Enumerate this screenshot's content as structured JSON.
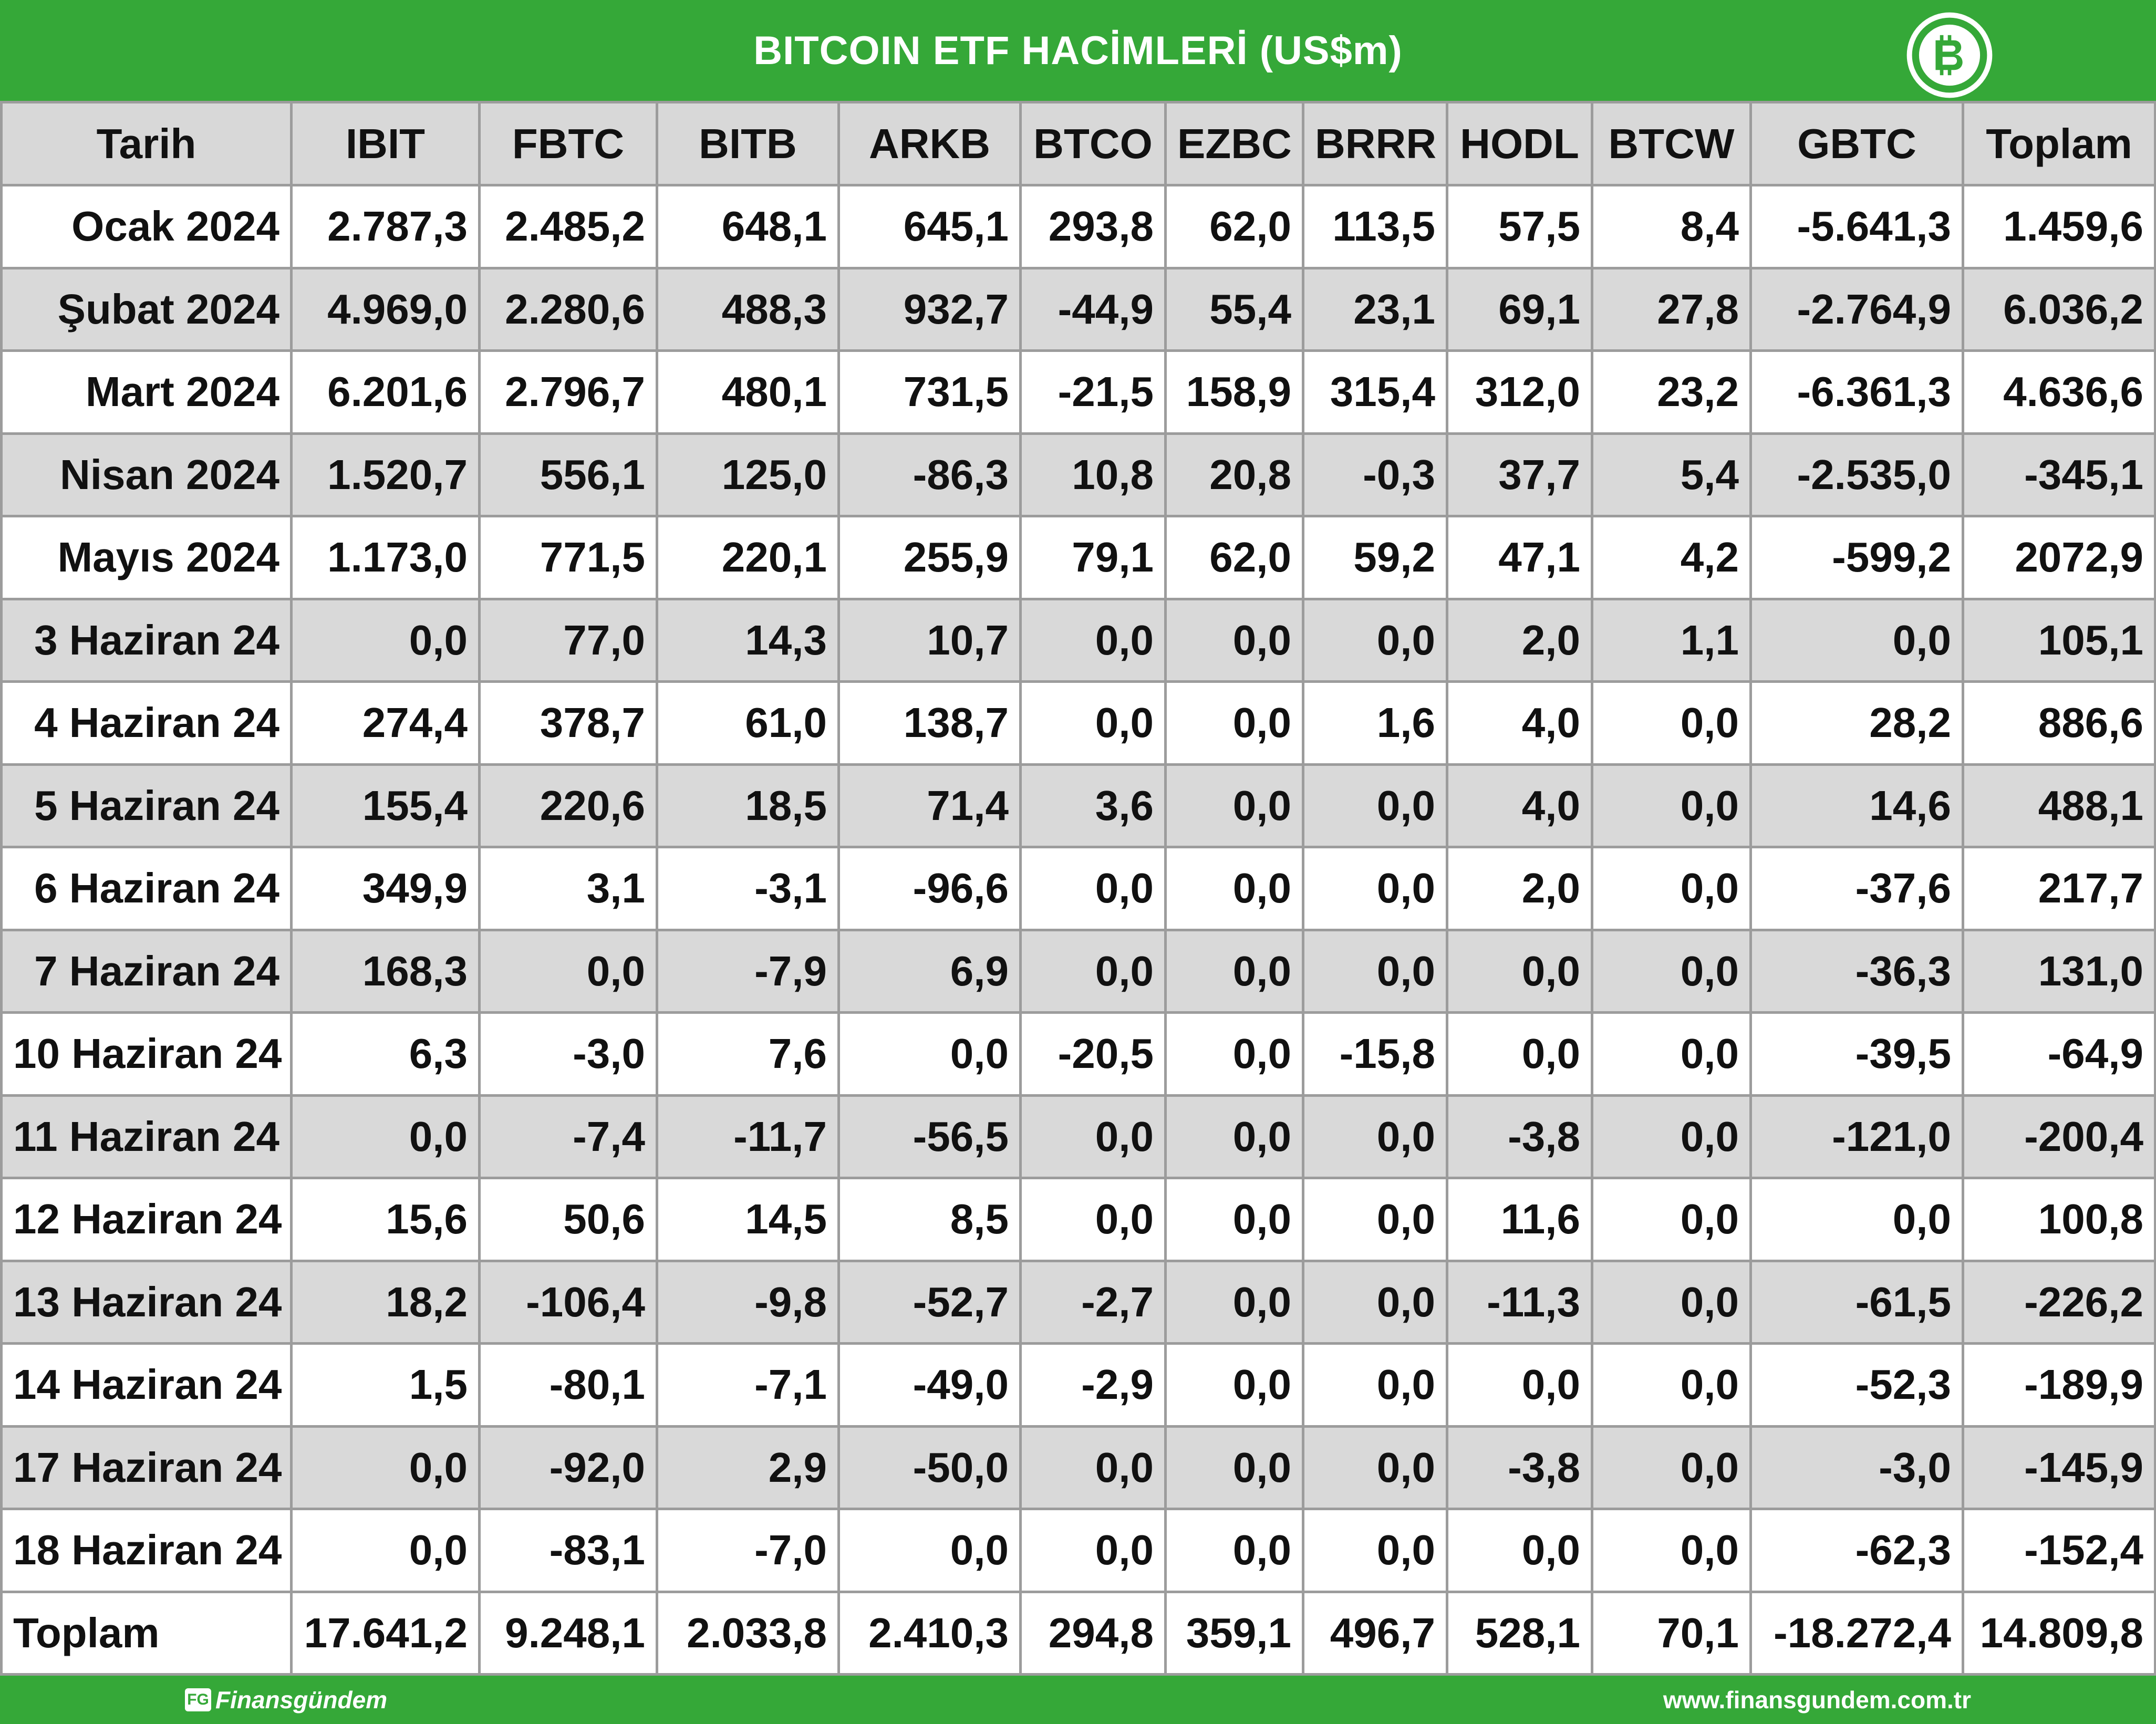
{
  "header": {
    "title": "BITCOIN ETF HACİMLERİ (US$m)",
    "logo_icon": "bitcoin-icon",
    "accent_color": "#35a838"
  },
  "table": {
    "columns": [
      "Tarih",
      "IBIT",
      "FBTC",
      "BITB",
      "ARKB",
      "BTCO",
      "EZBC",
      "BRRR",
      "HODL",
      "BTCW",
      "GBTC",
      "Toplam"
    ],
    "rows": [
      [
        "Ocak 2024",
        "2.787,3",
        "2.485,2",
        "648,1",
        "645,1",
        "293,8",
        "62,0",
        "113,5",
        "57,5",
        "8,4",
        "-5.641,3",
        "1.459,6"
      ],
      [
        "Şubat 2024",
        "4.969,0",
        "2.280,6",
        "488,3",
        "932,7",
        "-44,9",
        "55,4",
        "23,1",
        "69,1",
        "27,8",
        "-2.764,9",
        "6.036,2"
      ],
      [
        "Mart 2024",
        "6.201,6",
        "2.796,7",
        "480,1",
        "731,5",
        "-21,5",
        "158,9",
        "315,4",
        "312,0",
        "23,2",
        "-6.361,3",
        "4.636,6"
      ],
      [
        "Nisan 2024",
        "1.520,7",
        "556,1",
        "125,0",
        "-86,3",
        "10,8",
        "20,8",
        "-0,3",
        "37,7",
        "5,4",
        "-2.535,0",
        "-345,1"
      ],
      [
        "Mayıs 2024",
        "1.173,0",
        "771,5",
        "220,1",
        "255,9",
        "79,1",
        "62,0",
        "59,2",
        "47,1",
        "4,2",
        "-599,2",
        "2072,9"
      ],
      [
        "3 Haziran 24",
        "0,0",
        "77,0",
        "14,3",
        "10,7",
        "0,0",
        "0,0",
        "0,0",
        "2,0",
        "1,1",
        "0,0",
        "105,1"
      ],
      [
        "4 Haziran 24",
        "274,4",
        "378,7",
        "61,0",
        "138,7",
        "0,0",
        "0,0",
        "1,6",
        "4,0",
        "0,0",
        "28,2",
        "886,6"
      ],
      [
        "5 Haziran 24",
        "155,4",
        "220,6",
        "18,5",
        "71,4",
        "3,6",
        "0,0",
        "0,0",
        "4,0",
        "0,0",
        "14,6",
        "488,1"
      ],
      [
        "6 Haziran 24",
        "349,9",
        "3,1",
        "-3,1",
        "-96,6",
        "0,0",
        "0,0",
        "0,0",
        "2,0",
        "0,0",
        "-37,6",
        "217,7"
      ],
      [
        "7 Haziran 24",
        "168,3",
        "0,0",
        "-7,9",
        "6,9",
        "0,0",
        "0,0",
        "0,0",
        "0,0",
        "0,0",
        "-36,3",
        "131,0"
      ],
      [
        "10 Haziran 24",
        "6,3",
        "-3,0",
        "7,6",
        "0,0",
        "-20,5",
        "0,0",
        "-15,8",
        "0,0",
        "0,0",
        "-39,5",
        "-64,9"
      ],
      [
        "11 Haziran 24",
        "0,0",
        "-7,4",
        "-11,7",
        "-56,5",
        "0,0",
        "0,0",
        "0,0",
        "-3,8",
        "0,0",
        "-121,0",
        "-200,4"
      ],
      [
        "12 Haziran 24",
        "15,6",
        "50,6",
        "14,5",
        "8,5",
        "0,0",
        "0,0",
        "0,0",
        "11,6",
        "0,0",
        "0,0",
        "100,8"
      ],
      [
        "13 Haziran 24",
        "18,2",
        "-106,4",
        "-9,8",
        "-52,7",
        "-2,7",
        "0,0",
        "0,0",
        "-11,3",
        "0,0",
        "-61,5",
        "-226,2"
      ],
      [
        "14 Haziran 24",
        "1,5",
        "-80,1",
        "-7,1",
        "-49,0",
        "-2,9",
        "0,0",
        "0,0",
        "0,0",
        "0,0",
        "-52,3",
        "-189,9"
      ],
      [
        "17 Haziran 24",
        "0,0",
        "-92,0",
        "2,9",
        "-50,0",
        "0,0",
        "0,0",
        "0,0",
        "-3,8",
        "0,0",
        "-3,0",
        "-145,9"
      ],
      [
        "18 Haziran 24",
        "0,0",
        "-83,1",
        "-7,0",
        "0,0",
        "0,0",
        "0,0",
        "0,0",
        "0,0",
        "0,0",
        "-62,3",
        "-152,4"
      ]
    ],
    "total_row": [
      "Toplam",
      "17.641,2",
      "9.248,1",
      "2.033,8",
      "2.410,3",
      "294,8",
      "359,1",
      "496,7",
      "528,1",
      "70,1",
      "-18.272,4",
      "14.809,8"
    ]
  },
  "footer": {
    "brand_mark": "FG",
    "brand_name": "Finansgündem",
    "url": "www.finansgundem.com.tr"
  },
  "chart_data": {
    "type": "table",
    "title": "BITCOIN ETF HACİMLERİ (US$m)",
    "columns": [
      "Tarih",
      "IBIT",
      "FBTC",
      "BITB",
      "ARKB",
      "BTCO",
      "EZBC",
      "BRRR",
      "HODL",
      "BTCW",
      "GBTC",
      "Toplam"
    ],
    "categories": [
      "Ocak 2024",
      "Şubat 2024",
      "Mart 2024",
      "Nisan 2024",
      "Mayıs 2024",
      "3 Haziran 24",
      "4 Haziran 24",
      "5 Haziran 24",
      "6 Haziran 24",
      "7 Haziran 24",
      "10 Haziran 24",
      "11 Haziran 24",
      "12 Haziran 24",
      "13 Haziran 24",
      "14 Haziran 24",
      "17 Haziran 24",
      "18 Haziran 24",
      "Toplam"
    ],
    "series": [
      {
        "name": "IBIT",
        "values": [
          2787.3,
          4969.0,
          6201.6,
          1520.7,
          1173.0,
          0.0,
          274.4,
          155.4,
          349.9,
          168.3,
          6.3,
          0.0,
          15.6,
          18.2,
          1.5,
          0.0,
          0.0,
          17641.2
        ]
      },
      {
        "name": "FBTC",
        "values": [
          2485.2,
          2280.6,
          2796.7,
          556.1,
          771.5,
          77.0,
          378.7,
          220.6,
          3.1,
          0.0,
          -3.0,
          -7.4,
          50.6,
          -106.4,
          -80.1,
          -92.0,
          -83.1,
          9248.1
        ]
      },
      {
        "name": "BITB",
        "values": [
          648.1,
          488.3,
          480.1,
          125.0,
          220.1,
          14.3,
          61.0,
          18.5,
          -3.1,
          -7.9,
          7.6,
          -11.7,
          14.5,
          -9.8,
          -7.1,
          2.9,
          -7.0,
          2033.8
        ]
      },
      {
        "name": "ARKB",
        "values": [
          645.1,
          932.7,
          731.5,
          -86.3,
          255.9,
          10.7,
          138.7,
          71.4,
          -96.6,
          6.9,
          0.0,
          -56.5,
          8.5,
          -52.7,
          -49.0,
          -50.0,
          0.0,
          2410.3
        ]
      },
      {
        "name": "BTCO",
        "values": [
          293.8,
          -44.9,
          -21.5,
          10.8,
          79.1,
          0.0,
          0.0,
          3.6,
          0.0,
          0.0,
          -20.5,
          0.0,
          0.0,
          -2.7,
          -2.9,
          0.0,
          0.0,
          294.8
        ]
      },
      {
        "name": "EZBC",
        "values": [
          62.0,
          55.4,
          158.9,
          20.8,
          62.0,
          0.0,
          0.0,
          0.0,
          0.0,
          0.0,
          0.0,
          0.0,
          0.0,
          0.0,
          0.0,
          0.0,
          0.0,
          359.1
        ]
      },
      {
        "name": "BRRR",
        "values": [
          113.5,
          23.1,
          315.4,
          -0.3,
          59.2,
          0.0,
          1.6,
          0.0,
          0.0,
          0.0,
          -15.8,
          0.0,
          0.0,
          0.0,
          0.0,
          0.0,
          0.0,
          496.7
        ]
      },
      {
        "name": "HODL",
        "values": [
          57.5,
          69.1,
          312.0,
          37.7,
          47.1,
          2.0,
          4.0,
          4.0,
          2.0,
          0.0,
          0.0,
          -3.8,
          11.6,
          -11.3,
          0.0,
          -3.8,
          0.0,
          528.1
        ]
      },
      {
        "name": "BTCW",
        "values": [
          8.4,
          27.8,
          23.2,
          5.4,
          4.2,
          1.1,
          0.0,
          0.0,
          0.0,
          0.0,
          0.0,
          0.0,
          0.0,
          0.0,
          0.0,
          0.0,
          0.0,
          70.1
        ]
      },
      {
        "name": "GBTC",
        "values": [
          -5641.3,
          -2764.9,
          -6361.3,
          -2535.0,
          -599.2,
          0.0,
          28.2,
          14.6,
          -37.6,
          -36.3,
          -39.5,
          -121.0,
          0.0,
          -61.5,
          -52.3,
          -3.0,
          -62.3,
          -18272.4
        ]
      },
      {
        "name": "Toplam",
        "values": [
          1459.6,
          6036.2,
          4636.6,
          -345.1,
          2072.9,
          105.1,
          886.6,
          488.1,
          217.7,
          131.0,
          -64.9,
          -200.4,
          100.8,
          -226.2,
          -189.9,
          -145.9,
          -152.4,
          14809.8
        ]
      }
    ]
  }
}
